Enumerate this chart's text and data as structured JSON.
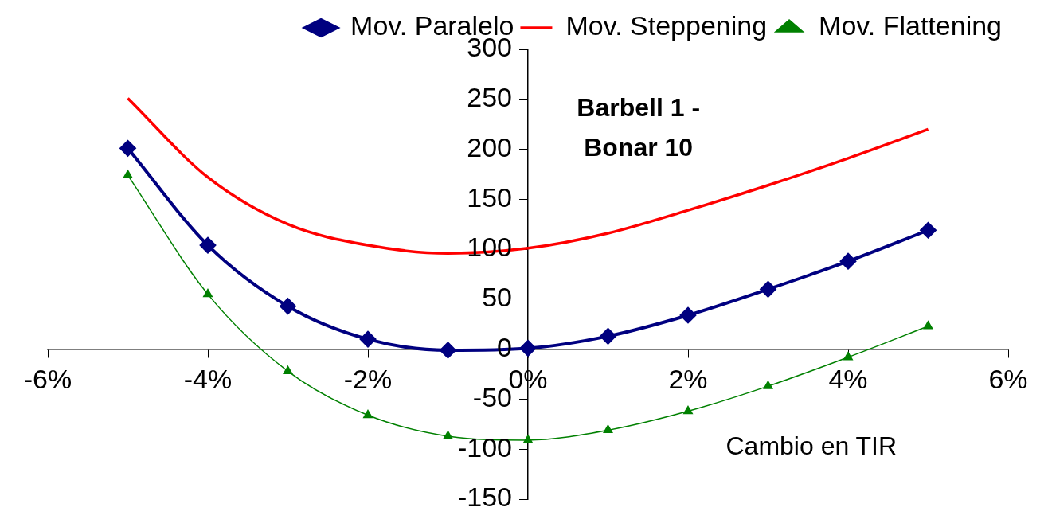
{
  "chart_data": {
    "type": "line",
    "title": "Barbell 1 - Bonar 10",
    "xlabel": "Cambio en TIR",
    "x": [
      -5,
      -4,
      -3,
      -2,
      -1,
      0,
      1,
      2,
      3,
      4,
      5
    ],
    "series": [
      {
        "name": "Mov. Paralelo",
        "color": "#000080",
        "marker": "diamond",
        "values": [
          201,
          104,
          43,
          10,
          -1,
          1,
          13,
          34,
          60,
          88,
          119
        ]
      },
      {
        "name": "Mov. Steppening",
        "color": "#ff0000",
        "marker": "none",
        "values": [
          251,
          172,
          125,
          104,
          96,
          101,
          116,
          139,
          164,
          191,
          220
        ]
      },
      {
        "name": "Mov. Flattening",
        "color": "#008000",
        "marker": "triangle",
        "values": [
          174,
          55,
          -22,
          -66,
          -87,
          -91,
          -81,
          -62,
          -37,
          -8,
          23
        ]
      }
    ],
    "xlim": [
      -6,
      6
    ],
    "xticks": [
      {
        "value": -6,
        "label": "-6%"
      },
      {
        "value": -4,
        "label": "-4%"
      },
      {
        "value": -2,
        "label": "-2%"
      },
      {
        "value": 0,
        "label": "0%"
      },
      {
        "value": 2,
        "label": "2%"
      },
      {
        "value": 4,
        "label": "4%"
      },
      {
        "value": 6,
        "label": "6%"
      }
    ],
    "ylim": [
      -150,
      300
    ],
    "yticks": [
      -150,
      -100,
      -50,
      0,
      50,
      100,
      150,
      200,
      250,
      300
    ],
    "grid": false,
    "legend": "top",
    "line_style": "solid"
  }
}
